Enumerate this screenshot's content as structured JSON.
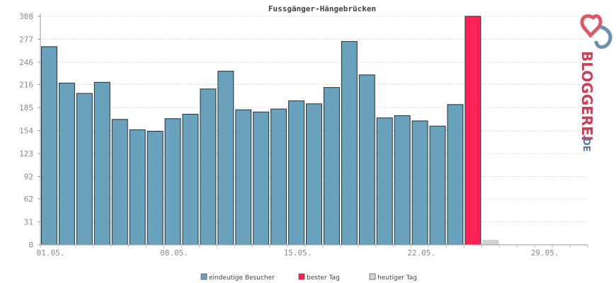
{
  "chart_data": {
    "type": "bar",
    "title": "Fussgänger-Hängebrücken",
    "categories": [
      "01.05.",
      "02.05.",
      "03.05.",
      "04.05.",
      "05.05.",
      "06.05.",
      "07.05.",
      "08.05.",
      "09.05.",
      "10.05.",
      "11.05.",
      "12.05.",
      "13.05.",
      "14.05.",
      "15.05.",
      "16.05.",
      "17.05.",
      "18.05.",
      "19.05.",
      "20.05.",
      "21.05.",
      "22.05.",
      "23.05.",
      "24.05.",
      "25.05.",
      "26.05.",
      "27.05.",
      "28.05.",
      "29.05.",
      "30.05.",
      "31.05."
    ],
    "x_tick_labels": [
      "01.05.",
      "08.05.",
      "15.05.",
      "22.05.",
      "29.05."
    ],
    "x_tick_indices": [
      0,
      7,
      14,
      21,
      28
    ],
    "yticks": [
      0,
      31,
      62,
      92,
      123,
      154,
      185,
      216,
      246,
      277,
      308
    ],
    "ylim": [
      0,
      308
    ],
    "grid": true,
    "series": [
      {
        "name": "eindeutige Besucher",
        "color": "#6aa1bc",
        "values": [
          267,
          218,
          204,
          219,
          169,
          155,
          153,
          170,
          176,
          210,
          234,
          182,
          179,
          183,
          194,
          190,
          212,
          274,
          229,
          171,
          174,
          167,
          160,
          189,
          null,
          null,
          null,
          null,
          null,
          null,
          null
        ]
      },
      {
        "name": "bester Tag",
        "color": "#ff2255",
        "values": [
          null,
          null,
          null,
          null,
          null,
          null,
          null,
          null,
          null,
          null,
          null,
          null,
          null,
          null,
          null,
          null,
          null,
          null,
          null,
          null,
          null,
          null,
          null,
          null,
          308,
          null,
          null,
          null,
          null,
          null,
          null
        ]
      },
      {
        "name": "heutiger Tag",
        "color": "#d4d4d4",
        "values": [
          null,
          null,
          null,
          null,
          null,
          null,
          null,
          null,
          null,
          null,
          null,
          null,
          null,
          null,
          null,
          null,
          null,
          null,
          null,
          null,
          null,
          null,
          null,
          null,
          null,
          6,
          0,
          0,
          0,
          0,
          0
        ]
      }
    ],
    "legend": [
      {
        "label": "eindeutige Besucher",
        "color": "#6aa1bc"
      },
      {
        "label": "bester Tag",
        "color": "#ff2255"
      },
      {
        "label": "heutiger Tag",
        "color": "#d4d4d4"
      }
    ],
    "legend_position": "bottom"
  },
  "logo": {
    "text": "BLOGGEREI",
    "suffix": ".DE",
    "color": "#c8415a",
    "suffix_color": "#5b7a9e"
  }
}
